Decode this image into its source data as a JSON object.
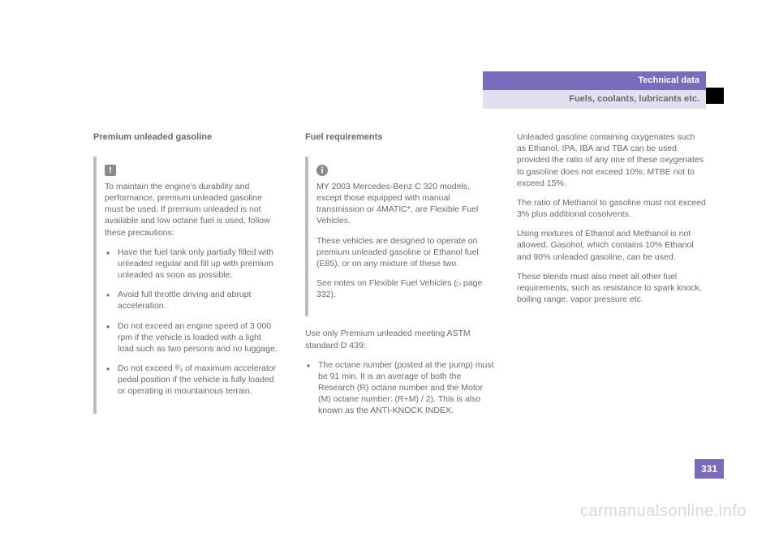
{
  "header": {
    "chapter": "Technical data",
    "section": "Fuels, coolants, lubricants etc."
  },
  "col1": {
    "heading": "Premium unleaded gasoline",
    "box": {
      "intro": "To maintain the engine's durability and performance, premium unleaded gasoline must be used. If premium unleaded is not available and low octane fuel is used, follow these precautions:",
      "bullets": [
        "Have the fuel tank only partially filled with unleaded regular and fill up with premium unleaded as soon as possible.",
        "Avoid full throttle driving and abrupt acceleration.",
        "Do not exceed an engine speed of 3 000 rpm if the vehicle is loaded with a light load such as two persons and no luggage.",
        "Do not exceed ²⁄₃ of maximum accelerator pedal position if the vehicle is fully loaded or operating in mountainous terrain."
      ]
    }
  },
  "col2": {
    "heading": "Fuel requirements",
    "box": {
      "p1": "MY 2003 Mercedes-Benz C 320 models, except those equipped with manual transmission or 4MATIC*, are Flexible Fuel Vehicles.",
      "p2": "These vehicles are designed to operate on premium unleaded gasoline or Ethanol fuel (E85), or on any mixture of these two.",
      "p3_a": "See notes on Flexible Fuel Vehicles (",
      "p3_page": "page 332",
      "p3_b": ")."
    },
    "after": {
      "p1": "Use only Premium unleaded meeting ASTM standard D 439:",
      "bullet1": "The octane number (posted at the pump) must be 91 min. It is an average of both the Research (R) octane number and the Motor (M) octane number: (R+M) / 2). This is also known as the ANTI-KNOCK INDEX."
    }
  },
  "col3": {
    "p1": "Unleaded gasoline containing oxygenates such as Ethanol, IPA, IBA and TBA can be used provided the ratio of any one of these oxygenates to gasoline does not exceed 10%; MTBE not to exceed 15%.",
    "p2": "The ratio of Methanol to gasoline must not exceed 3% plus additional cosolvents.",
    "p3": "Using mixtures of Ethanol and Methanol is not allowed. Gasohol, which contains 10% Ethanol and 90% unleaded gasoline, can be used.",
    "p4": "These blends must also meet all other fuel requirements, such as resistance to spark knock, boiling range, vapor pressure etc."
  },
  "page_number": "331",
  "watermark": "carmanualsonline.info"
}
